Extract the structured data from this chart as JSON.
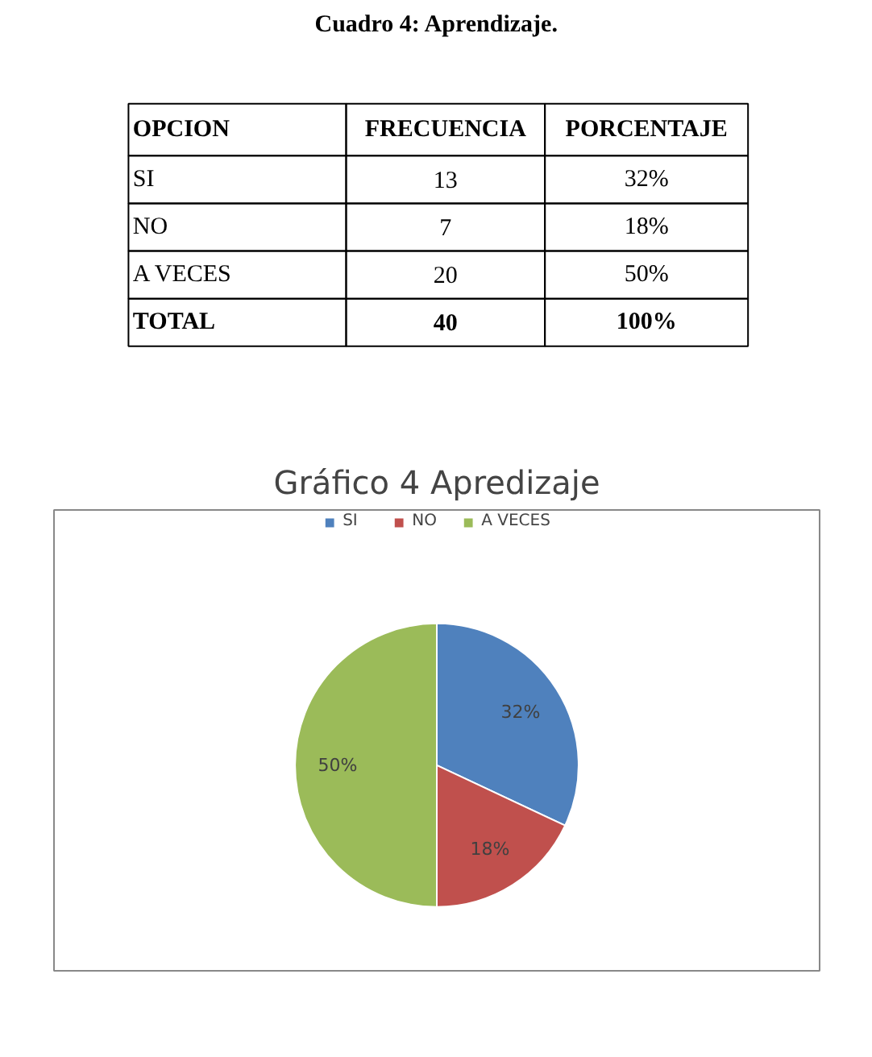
{
  "chart_data": [
    {
      "type": "other",
      "title": "Cuadro 4: Aprendizaje.",
      "annotations": [
        "OPCION",
        "FRECUENCIA",
        "PORCENTAJE",
        "SI",
        "13",
        "32%",
        "NO",
        "7",
        "18%",
        "A VECES",
        "20",
        "50%",
        "TOTAL",
        "40",
        "100%"
      ]
    },
    {
      "type": "pie",
      "title": "Gráfico 4 Apredizaje",
      "categories": [
        "SI",
        "NO",
        "A VECES"
      ],
      "values": [
        32,
        18,
        50
      ],
      "colors": [
        "#4f81bd",
        "#c0504d",
        "#9bbb59"
      ],
      "value_labels": [
        "32%",
        "18%",
        "50%"
      ],
      "legend": "top"
    }
  ]
}
